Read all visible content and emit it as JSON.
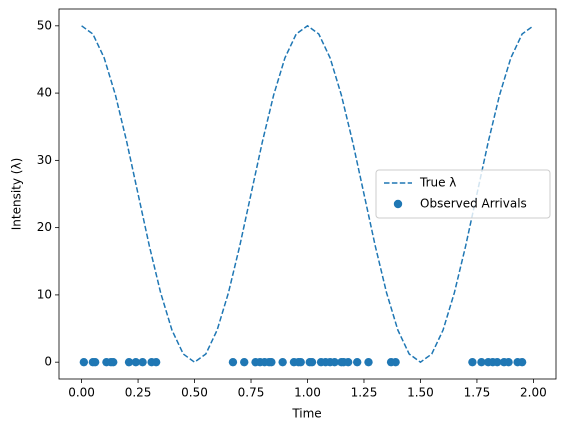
{
  "chart_data": {
    "type": "line",
    "xlabel": "Time",
    "ylabel": "Intensity (λ)",
    "xlim": [
      -0.1,
      2.1
    ],
    "ylim": [
      -2.5,
      52.5
    ],
    "xticks": [
      {
        "value": 0,
        "label": "0.00"
      },
      {
        "value": 0.25,
        "label": "0.25"
      },
      {
        "value": 0.5,
        "label": "0.50"
      },
      {
        "value": 0.75,
        "label": "0.75"
      },
      {
        "value": 1,
        "label": "1.00"
      },
      {
        "value": 1.25,
        "label": "1.25"
      },
      {
        "value": 1.5,
        "label": "1.50"
      },
      {
        "value": 1.75,
        "label": "1.75"
      },
      {
        "value": 2,
        "label": "2.00"
      }
    ],
    "yticks": [
      0,
      10,
      20,
      30,
      40,
      50
    ],
    "grid": false,
    "legend": "center right",
    "series": [
      {
        "name": "True λ",
        "type": "line",
        "color": "#1f77b4",
        "x": [
          0,
          0.05,
          0.1,
          0.15,
          0.2,
          0.25,
          0.3,
          0.35,
          0.4,
          0.45,
          0.5,
          0.55,
          0.6,
          0.65,
          0.7,
          0.75,
          0.8,
          0.85,
          0.9,
          0.95,
          1,
          1.05,
          1.1,
          1.15,
          1.2,
          1.25,
          1.3,
          1.35,
          1.4,
          1.45,
          1.5,
          1.55,
          1.6,
          1.65,
          1.7,
          1.75,
          1.8,
          1.85,
          1.9,
          1.95,
          2
        ],
        "values": [
          50,
          48.78,
          45.23,
          39.69,
          32.73,
          25,
          17.27,
          10.31,
          4.77,
          1.22,
          0,
          1.22,
          4.77,
          10.31,
          17.27,
          25,
          32.73,
          39.69,
          45.23,
          48.78,
          50,
          48.78,
          45.23,
          39.69,
          32.73,
          25,
          17.27,
          10.31,
          4.77,
          1.22,
          0,
          1.22,
          4.77,
          10.31,
          17.27,
          25,
          32.73,
          39.69,
          45.23,
          48.78,
          50
        ]
      },
      {
        "name": "Observed Arrivals",
        "type": "scatter",
        "color": "#1f77b4",
        "x": [
          0.01,
          0.05,
          0.06,
          0.11,
          0.13,
          0.14,
          0.21,
          0.24,
          0.27,
          0.31,
          0.33,
          0.67,
          0.72,
          0.77,
          0.79,
          0.81,
          0.83,
          0.84,
          0.89,
          0.94,
          0.96,
          0.97,
          1.01,
          1.02,
          1.06,
          1.08,
          1.1,
          1.12,
          1.15,
          1.16,
          1.18,
          1.22,
          1.27,
          1.37,
          1.39,
          1.73,
          1.77,
          1.8,
          1.82,
          1.84,
          1.87,
          1.89,
          1.93,
          1.95
        ],
        "values": [
          0,
          0,
          0,
          0,
          0,
          0,
          0,
          0,
          0,
          0,
          0,
          0,
          0,
          0,
          0,
          0,
          0,
          0,
          0,
          0,
          0,
          0,
          0,
          0,
          0,
          0,
          0,
          0,
          0,
          0,
          0,
          0,
          0,
          0,
          0,
          0,
          0,
          0,
          0,
          0,
          0,
          0,
          0,
          0
        ]
      }
    ]
  }
}
